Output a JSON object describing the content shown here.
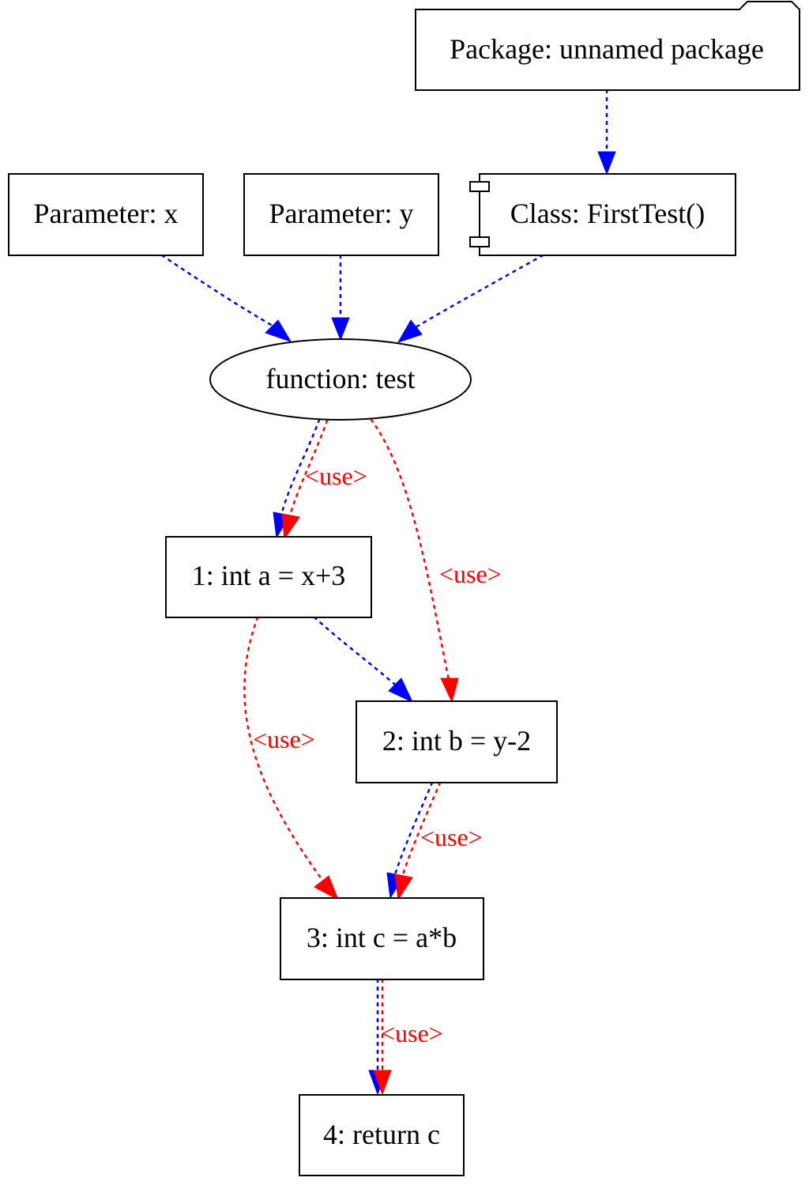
{
  "colors": {
    "control_edge": "#0000ff",
    "use_edge": "#ff0000",
    "node_border": "#000000",
    "text": "#000000"
  },
  "nodes": {
    "package": {
      "label": "Package: unnamed package",
      "shape": "folder"
    },
    "param_x": {
      "label": "Parameter: x",
      "shape": "box"
    },
    "param_y": {
      "label": "Parameter: y",
      "shape": "box"
    },
    "class": {
      "label": "Class: FirstTest()",
      "shape": "component"
    },
    "function": {
      "label": "function: test",
      "shape": "ellipse"
    },
    "stmt1": {
      "label": "1: int a = x+3",
      "shape": "box"
    },
    "stmt2": {
      "label": "2: int b = y-2",
      "shape": "box"
    },
    "stmt3": {
      "label": "3: int c = a*b",
      "shape": "box"
    },
    "stmt4": {
      "label": "4: return c",
      "shape": "box"
    }
  },
  "edges": [
    {
      "from": "package",
      "to": "class",
      "kind": "control",
      "label": ""
    },
    {
      "from": "param_x",
      "to": "function",
      "kind": "control",
      "label": ""
    },
    {
      "from": "param_y",
      "to": "function",
      "kind": "control",
      "label": ""
    },
    {
      "from": "class",
      "to": "function",
      "kind": "control",
      "label": ""
    },
    {
      "from": "function",
      "to": "stmt1",
      "kind": "control",
      "label": ""
    },
    {
      "from": "function",
      "to": "stmt1",
      "kind": "use",
      "label": "<use>"
    },
    {
      "from": "function",
      "to": "stmt2",
      "kind": "use",
      "label": "<use>"
    },
    {
      "from": "stmt1",
      "to": "stmt2",
      "kind": "control",
      "label": ""
    },
    {
      "from": "stmt1",
      "to": "stmt3",
      "kind": "use",
      "label": "<use>"
    },
    {
      "from": "stmt2",
      "to": "stmt3",
      "kind": "control",
      "label": ""
    },
    {
      "from": "stmt2",
      "to": "stmt3",
      "kind": "use",
      "label": "<use>"
    },
    {
      "from": "stmt3",
      "to": "stmt4",
      "kind": "control",
      "label": ""
    },
    {
      "from": "stmt3",
      "to": "stmt4",
      "kind": "use",
      "label": "<use>"
    }
  ]
}
